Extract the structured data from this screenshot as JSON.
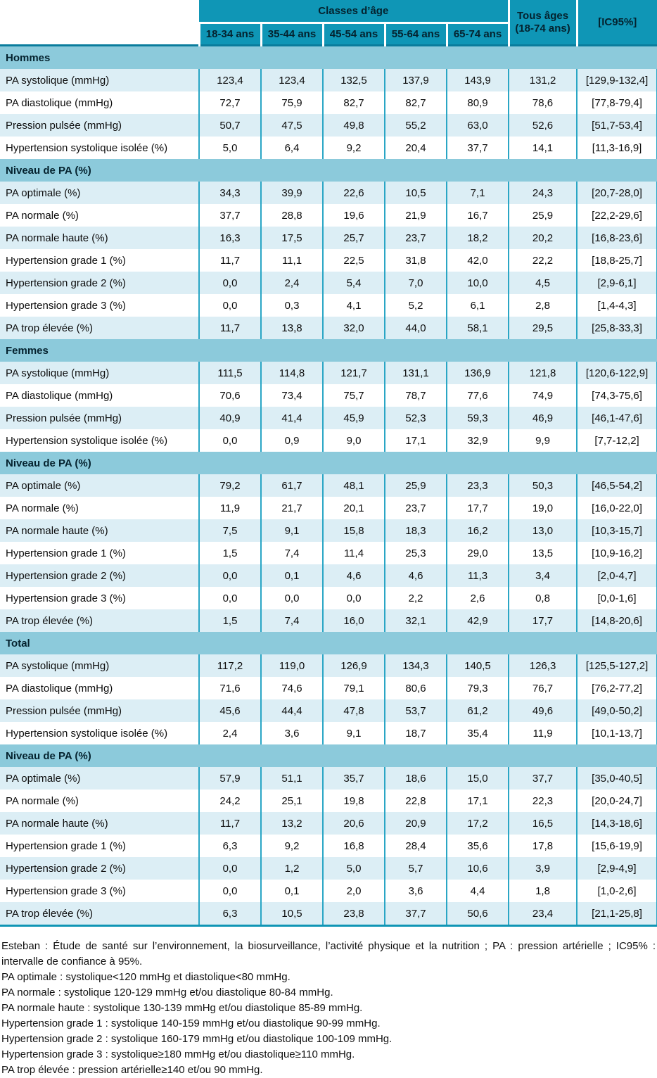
{
  "table": {
    "header": {
      "classes_dage": "Classes d’âge",
      "age_columns": [
        "18-34 ans",
        "35-44 ans",
        "45-54 ans",
        "55-64 ans",
        "65-74 ans"
      ],
      "tous_ages_line1": "Tous âges",
      "tous_ages_line2": "(18-74 ans)",
      "ic_label": "[IC95%]"
    },
    "sections": [
      {
        "title": "Hommes",
        "rows": [
          {
            "label": "PA systolique (mmHg)",
            "values": [
              "123,4",
              "123,4",
              "132,5",
              "137,9",
              "143,9",
              "131,2"
            ],
            "ic": "[129,9-132,4]"
          },
          {
            "label": "PA diastolique (mmHg)",
            "values": [
              "72,7",
              "75,9",
              "82,7",
              "82,7",
              "80,9",
              "78,6"
            ],
            "ic": "[77,8-79,4]"
          },
          {
            "label": "Pression pulsée (mmHg)",
            "values": [
              "50,7",
              "47,5",
              "49,8",
              "55,2",
              "63,0",
              "52,6"
            ],
            "ic": "[51,7-53,4]"
          },
          {
            "label": "Hypertension systolique isolée (%)",
            "values": [
              "5,0",
              "6,4",
              "9,2",
              "20,4",
              "37,7",
              "14,1"
            ],
            "ic": "[11,3-16,9]"
          }
        ]
      },
      {
        "title": "Niveau de PA (%)",
        "rows": [
          {
            "label": "PA optimale (%)",
            "values": [
              "34,3",
              "39,9",
              "22,6",
              "10,5",
              "7,1",
              "24,3"
            ],
            "ic": "[20,7-28,0]"
          },
          {
            "label": "PA normale (%)",
            "values": [
              "37,7",
              "28,8",
              "19,6",
              "21,9",
              "16,7",
              "25,9"
            ],
            "ic": "[22,2-29,6]"
          },
          {
            "label": "PA normale haute (%)",
            "values": [
              "16,3",
              "17,5",
              "25,7",
              "23,7",
              "18,2",
              "20,2"
            ],
            "ic": "[16,8-23,6]"
          },
          {
            "label": "Hypertension grade 1 (%)",
            "values": [
              "11,7",
              "11,1",
              "22,5",
              "31,8",
              "42,0",
              "22,2"
            ],
            "ic": "[18,8-25,7]"
          },
          {
            "label": "Hypertension grade 2 (%)",
            "values": [
              "0,0",
              "2,4",
              "5,4",
              "7,0",
              "10,0",
              "4,5"
            ],
            "ic": "[2,9-6,1]"
          },
          {
            "label": "Hypertension grade 3 (%)",
            "values": [
              "0,0",
              "0,3",
              "4,1",
              "5,2",
              "6,1",
              "2,8"
            ],
            "ic": "[1,4-4,3]"
          },
          {
            "label": "PA trop élevée (%)",
            "values": [
              "11,7",
              "13,8",
              "32,0",
              "44,0",
              "58,1",
              "29,5"
            ],
            "ic": "[25,8-33,3]"
          }
        ]
      },
      {
        "title": "Femmes",
        "rows": [
          {
            "label": "PA systolique (mmHg)",
            "values": [
              "111,5",
              "114,8",
              "121,7",
              "131,1",
              "136,9",
              "121,8"
            ],
            "ic": "[120,6-122,9]"
          },
          {
            "label": "PA diastolique (mmHg)",
            "values": [
              "70,6",
              "73,4",
              "75,7",
              "78,7",
              "77,6",
              "74,9"
            ],
            "ic": "[74,3-75,6]"
          },
          {
            "label": "Pression pulsée (mmHg)",
            "values": [
              "40,9",
              "41,4",
              "45,9",
              "52,3",
              "59,3",
              "46,9"
            ],
            "ic": "[46,1-47,6]"
          },
          {
            "label": "Hypertension systolique isolée (%)",
            "values": [
              "0,0",
              "0,9",
              "9,0",
              "17,1",
              "32,9",
              "9,9"
            ],
            "ic": "[7,7-12,2]"
          }
        ]
      },
      {
        "title": "Niveau de PA (%)",
        "rows": [
          {
            "label": "PA optimale (%)",
            "values": [
              "79,2",
              "61,7",
              "48,1",
              "25,9",
              "23,3",
              "50,3"
            ],
            "ic": "[46,5-54,2]"
          },
          {
            "label": "PA normale (%)",
            "values": [
              "11,9",
              "21,7",
              "20,1",
              "23,7",
              "17,7",
              "19,0"
            ],
            "ic": "[16,0-22,0]"
          },
          {
            "label": "PA normale haute (%)",
            "values": [
              "7,5",
              "9,1",
              "15,8",
              "18,3",
              "16,2",
              "13,0"
            ],
            "ic": "[10,3-15,7]"
          },
          {
            "label": "Hypertension grade 1 (%)",
            "values": [
              "1,5",
              "7,4",
              "11,4",
              "25,3",
              "29,0",
              "13,5"
            ],
            "ic": "[10,9-16,2]"
          },
          {
            "label": "Hypertension grade 2 (%)",
            "values": [
              "0,0",
              "0,1",
              "4,6",
              "4,6",
              "11,3",
              "3,4"
            ],
            "ic": "[2,0-4,7]"
          },
          {
            "label": "Hypertension grade 3 (%)",
            "values": [
              "0,0",
              "0,0",
              "0,0",
              "2,2",
              "2,6",
              "0,8"
            ],
            "ic": "[0,0-1,6]"
          },
          {
            "label": "PA trop élevée (%)",
            "values": [
              "1,5",
              "7,4",
              "16,0",
              "32,1",
              "42,9",
              "17,7"
            ],
            "ic": "[14,8-20,6]"
          }
        ]
      },
      {
        "title": "Total",
        "rows": [
          {
            "label": "PA systolique (mmHg)",
            "values": [
              "117,2",
              "119,0",
              "126,9",
              "134,3",
              "140,5",
              "126,3"
            ],
            "ic": "[125,5-127,2]"
          },
          {
            "label": "PA diastolique (mmHg)",
            "values": [
              "71,6",
              "74,6",
              "79,1",
              "80,6",
              "79,3",
              "76,7"
            ],
            "ic": "[76,2-77,2]"
          },
          {
            "label": "Pression pulsée (mmHg)",
            "values": [
              "45,6",
              "44,4",
              "47,8",
              "53,7",
              "61,2",
              "49,6"
            ],
            "ic": "[49,0-50,2]"
          },
          {
            "label": "Hypertension systolique isolée (%)",
            "values": [
              "2,4",
              "3,6",
              "9,1",
              "18,7",
              "35,4",
              "11,9"
            ],
            "ic": "[10,1-13,7]"
          }
        ]
      },
      {
        "title": "Niveau de PA (%)",
        "rows": [
          {
            "label": "PA optimale (%)",
            "values": [
              "57,9",
              "51,1",
              "35,7",
              "18,6",
              "15,0",
              "37,7"
            ],
            "ic": "[35,0-40,5]"
          },
          {
            "label": "PA normale (%)",
            "values": [
              "24,2",
              "25,1",
              "19,8",
              "22,8",
              "17,1",
              "22,3"
            ],
            "ic": "[20,0-24,7]"
          },
          {
            "label": "PA normale haute (%)",
            "values": [
              "11,7",
              "13,2",
              "20,6",
              "20,9",
              "17,2",
              "16,5"
            ],
            "ic": "[14,3-18,6]"
          },
          {
            "label": "Hypertension grade 1 (%)",
            "values": [
              "6,3",
              "9,2",
              "16,8",
              "28,4",
              "35,6",
              "17,8"
            ],
            "ic": "[15,6-19,9]"
          },
          {
            "label": "Hypertension grade 2 (%)",
            "values": [
              "0,0",
              "1,2",
              "5,0",
              "5,7",
              "10,6",
              "3,9"
            ],
            "ic": "[2,9-4,9]"
          },
          {
            "label": "Hypertension grade 3 (%)",
            "values": [
              "0,0",
              "0,1",
              "2,0",
              "3,6",
              "4,4",
              "1,8"
            ],
            "ic": "[1,0-2,6]"
          },
          {
            "label": "PA trop élevée (%)",
            "values": [
              "6,3",
              "10,5",
              "23,8",
              "37,7",
              "50,6",
              "23,4"
            ],
            "ic": "[21,1-25,8]"
          }
        ]
      }
    ]
  },
  "footnotes": [
    "Esteban : Étude de santé sur l’environnement, la biosurveillance, l’activité physique et la nutrition ; PA : pression artérielle ; IC95% : intervalle de confiance à 95%.",
    "PA optimale : systolique<120 mmHg et diastolique<80 mmHg.",
    "PA normale : systolique 120-129 mmHg et/ou diastolique 80-84 mmHg.",
    "PA normale haute : systolique 130-139 mmHg et/ou diastolique 85-89 mmHg.",
    "Hypertension grade 1 : systolique 140-159 mmHg et/ou diastolique 90-99 mmHg.",
    "Hypertension grade 2 : systolique 160-179 mmHg et/ou diastolique 100-109 mmHg.",
    "Hypertension grade 3 : systolique≥180 mmHg et/ou diastolique≥110 mmHg.",
    "PA trop élevée : pression artérielle≥140 et/ou 90 mmHg."
  ],
  "colors": {
    "header_teal": "#0f96b6",
    "section_band": "#8ccadb",
    "row_light": "#dceef5",
    "row_white": "#ffffff",
    "separator": "#2aa6c5",
    "header_divider": "#0a7c9c",
    "bottom_border": "#1095b5"
  }
}
